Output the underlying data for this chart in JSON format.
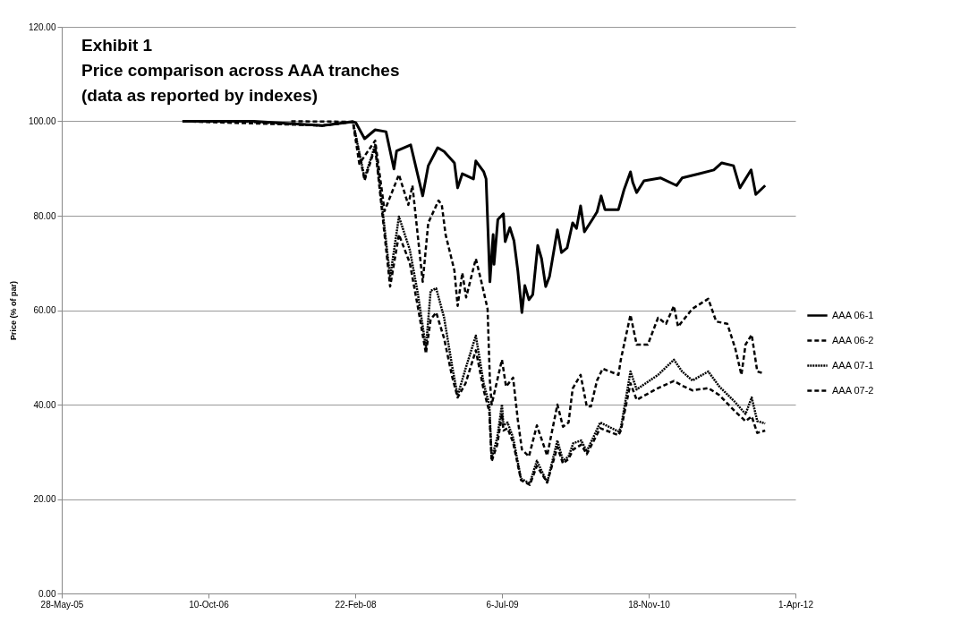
{
  "chart_data": {
    "type": "line",
    "title": "Exhibit 1\nPrice comparison across AAA tranches\n(data as reported by indexes)",
    "ylabel": "Price (% of par)",
    "xlim": [
      "2005-05-28",
      "2012-04-01"
    ],
    "xticks": [
      {
        "value": "2005-05-28",
        "label": "28-May-05"
      },
      {
        "value": "2006-10-10",
        "label": "10-Oct-06"
      },
      {
        "value": "2008-02-22",
        "label": "22-Feb-08"
      },
      {
        "value": "2009-07-06",
        "label": "6-Jul-09"
      },
      {
        "value": "2010-11-18",
        "label": "18-Nov-10"
      },
      {
        "value": "2012-04-01",
        "label": "1-Apr-12"
      }
    ],
    "ylim": [
      0,
      120
    ],
    "yticks": [
      {
        "value": 0,
        "label": "0.00"
      },
      {
        "value": 20,
        "label": "20.00"
      },
      {
        "value": 40,
        "label": "40.00"
      },
      {
        "value": 60,
        "label": "60.00"
      },
      {
        "value": 80,
        "label": "80.00"
      },
      {
        "value": 100,
        "label": "100.00"
      },
      {
        "value": 120,
        "label": "120.00"
      }
    ],
    "grid": "y",
    "legend": "right",
    "series": [
      {
        "name": "AAA 06-1",
        "color": "#000000",
        "line_style": "solid",
        "x": [
          "2006-07-13",
          "2007-03-13",
          "2007-11-02",
          "2008-02-14",
          "2008-02-24",
          "2008-03-25",
          "2008-04-30",
          "2008-06-06",
          "2008-07-03",
          "2008-07-12",
          "2008-08-29",
          "2008-10-09",
          "2008-10-28",
          "2008-11-29",
          "2008-12-21",
          "2009-01-25",
          "2009-02-05",
          "2009-02-21",
          "2009-03-31",
          "2009-04-08",
          "2009-05-05",
          "2009-05-13",
          "2009-05-26",
          "2009-06-06",
          "2009-06-09",
          "2009-06-22",
          "2009-07-11",
          "2009-07-17",
          "2009-08-02",
          "2009-08-16",
          "2009-08-29",
          "2009-09-12",
          "2009-09-22",
          "2009-10-06",
          "2009-10-19",
          "2009-11-05",
          "2009-11-18",
          "2009-12-02",
          "2009-12-15",
          "2010-01-11",
          "2010-01-25",
          "2010-02-13",
          "2010-03-04",
          "2010-03-17",
          "2010-03-31",
          "2010-04-13",
          "2010-05-10",
          "2010-05-26",
          "2010-06-09",
          "2010-06-22",
          "2010-08-07",
          "2010-08-26",
          "2010-09-17",
          "2010-09-25",
          "2010-10-08",
          "2010-11-02",
          "2010-12-29",
          "2011-02-21",
          "2011-03-12",
          "2011-05-10",
          "2011-06-28",
          "2011-07-25",
          "2011-09-03",
          "2011-09-25",
          "2011-11-02",
          "2011-11-18",
          "2011-12-20"
        ],
        "values": [
          100.0,
          100.0,
          99.1,
          99.9,
          99.7,
          96.3,
          98.2,
          97.8,
          89.9,
          93.7,
          95.0,
          84.2,
          90.6,
          94.4,
          93.6,
          91.2,
          85.9,
          88.9,
          87.8,
          91.6,
          89.3,
          87.8,
          66.0,
          76.0,
          69.7,
          79.2,
          80.4,
          74.5,
          77.5,
          74.7,
          68.4,
          59.5,
          65.2,
          62.2,
          63.3,
          73.7,
          70.9,
          65.0,
          67.1,
          77.0,
          72.2,
          73.2,
          78.5,
          77.3,
          82.1,
          76.6,
          79.2,
          80.8,
          84.2,
          81.3,
          81.3,
          85.5,
          89.3,
          87.0,
          84.9,
          87.4,
          88.0,
          86.4,
          88.0,
          88.9,
          89.7,
          91.2,
          90.6,
          85.9,
          89.7,
          84.5,
          86.4
        ]
      },
      {
        "name": "AAA 06-2",
        "color": "#000000",
        "line_style": "dashed",
        "x": [
          "2006-07-20",
          "2007-11-02",
          "2008-02-14",
          "2008-03-07",
          "2008-04-30",
          "2008-06-01",
          "2008-07-20",
          "2008-08-21",
          "2008-09-04",
          "2008-10-09",
          "2008-10-28",
          "2008-12-02",
          "2008-12-13",
          "2008-12-26",
          "2009-01-25",
          "2009-02-05",
          "2009-02-21",
          "2009-03-06",
          "2009-04-08",
          "2009-04-27",
          "2009-05-18",
          "2009-05-26",
          "2009-06-01",
          "2009-07-06",
          "2009-07-20",
          "2009-08-13",
          "2009-08-29",
          "2009-09-12",
          "2009-10-06",
          "2009-11-02",
          "2009-12-07",
          "2010-01-11",
          "2010-01-30",
          "2010-02-18",
          "2010-03-04",
          "2010-03-31",
          "2010-04-21",
          "2010-05-05",
          "2010-05-26",
          "2010-06-14",
          "2010-08-07",
          "2010-08-15",
          "2010-09-17",
          "2010-10-08",
          "2010-11-15",
          "2010-12-20",
          "2011-01-16",
          "2011-02-12",
          "2011-02-26",
          "2011-04-16",
          "2011-06-09",
          "2011-07-06",
          "2011-08-13",
          "2011-09-09",
          "2011-09-30",
          "2011-10-14",
          "2011-11-04",
          "2011-11-23",
          "2011-12-15"
        ],
        "values": [
          100.0,
          99.1,
          99.9,
          91.0,
          95.9,
          81.0,
          88.7,
          82.3,
          86.4,
          66.0,
          78.5,
          83.2,
          82.3,
          76.0,
          68.4,
          60.9,
          67.9,
          62.7,
          70.9,
          66.0,
          60.3,
          45.0,
          40.0,
          49.5,
          43.8,
          45.7,
          36.8,
          30.5,
          29.0,
          35.6,
          29.2,
          40.0,
          35.3,
          36.2,
          43.4,
          46.3,
          39.6,
          39.6,
          45.1,
          47.6,
          46.3,
          49.5,
          59.0,
          52.7,
          52.7,
          58.4,
          57.1,
          60.9,
          56.5,
          60.3,
          62.4,
          57.6,
          57.1,
          51.9,
          46.3,
          52.7,
          54.8,
          47.0,
          46.6
        ]
      },
      {
        "name": "AAA 07-1",
        "color": "#000000",
        "line_style": "dotted",
        "x": [
          "2007-01-19",
          "2007-11-02",
          "2008-02-14",
          "2008-03-25",
          "2008-04-30",
          "2008-06-20",
          "2008-07-20",
          "2008-08-26",
          "2008-09-23",
          "2008-10-20",
          "2008-11-05",
          "2008-11-24",
          "2008-12-21",
          "2009-01-17",
          "2009-02-05",
          "2009-03-04",
          "2009-04-08",
          "2009-05-05",
          "2009-05-24",
          "2009-06-01",
          "2009-06-20",
          "2009-07-06",
          "2009-07-11",
          "2009-07-25",
          "2009-08-13",
          "2009-09-09",
          "2009-10-09",
          "2009-11-02",
          "2009-12-07",
          "2010-01-11",
          "2010-01-30",
          "2010-02-18",
          "2010-03-06",
          "2010-04-02",
          "2010-04-21",
          "2010-06-06",
          "2010-08-07",
          "2010-08-15",
          "2010-09-17",
          "2010-10-08",
          "2010-12-20",
          "2011-02-12",
          "2011-03-12",
          "2011-04-16",
          "2011-06-09",
          "2011-07-17",
          "2011-09-09",
          "2011-10-14",
          "2011-11-04",
          "2011-11-23",
          "2011-12-20"
        ],
        "values": [
          100.0,
          99.1,
          99.9,
          88.0,
          95.0,
          67.0,
          79.8,
          72.8,
          63.3,
          52.0,
          64.1,
          64.6,
          58.4,
          48.2,
          41.9,
          47.6,
          54.6,
          44.4,
          40.0,
          28.6,
          33.0,
          40.0,
          35.6,
          36.2,
          33.0,
          24.3,
          23.3,
          28.1,
          23.5,
          32.4,
          28.1,
          29.0,
          31.8,
          32.4,
          30.1,
          36.2,
          34.3,
          35.0,
          47.0,
          43.2,
          46.3,
          49.5,
          47.0,
          45.1,
          47.0,
          43.8,
          40.5,
          38.0,
          41.5,
          36.5,
          36.0
        ]
      },
      {
        "name": "AAA 07-2",
        "color": "#000000",
        "line_style": "dashed",
        "x": [
          "2007-07-19",
          "2008-02-14",
          "2008-03-25",
          "2008-04-30",
          "2008-06-20",
          "2008-07-20",
          "2008-08-26",
          "2008-09-23",
          "2008-10-20",
          "2008-11-05",
          "2008-11-24",
          "2008-12-21",
          "2009-01-17",
          "2009-02-05",
          "2009-03-04",
          "2009-04-08",
          "2009-05-05",
          "2009-05-24",
          "2009-06-01",
          "2009-06-20",
          "2009-07-06",
          "2009-07-11",
          "2009-07-25",
          "2009-08-13",
          "2009-09-09",
          "2009-10-09",
          "2009-11-02",
          "2009-12-07",
          "2010-01-11",
          "2010-01-30",
          "2010-02-18",
          "2010-03-06",
          "2010-04-02",
          "2010-04-21",
          "2010-06-06",
          "2010-08-07",
          "2010-08-15",
          "2010-09-17",
          "2010-10-08",
          "2010-12-20",
          "2011-02-12",
          "2011-03-12",
          "2011-04-16",
          "2011-06-09",
          "2011-07-17",
          "2011-09-09",
          "2011-10-14",
          "2011-11-04",
          "2011-11-23",
          "2011-12-20"
        ],
        "values": [
          100.0,
          99.9,
          87.5,
          94.5,
          65.0,
          76.0,
          70.0,
          60.5,
          50.8,
          58.0,
          59.5,
          54.0,
          46.0,
          41.5,
          44.5,
          51.5,
          43.0,
          38.5,
          28.0,
          31.5,
          38.0,
          34.5,
          35.0,
          32.0,
          24.0,
          23.0,
          27.0,
          23.5,
          31.0,
          27.5,
          28.5,
          30.5,
          31.5,
          29.5,
          35.0,
          33.5,
          34.5,
          44.5,
          41.0,
          43.5,
          45.0,
          44.0,
          43.0,
          43.5,
          42.0,
          38.5,
          36.5,
          37.5,
          34.0,
          34.5
        ]
      }
    ]
  }
}
